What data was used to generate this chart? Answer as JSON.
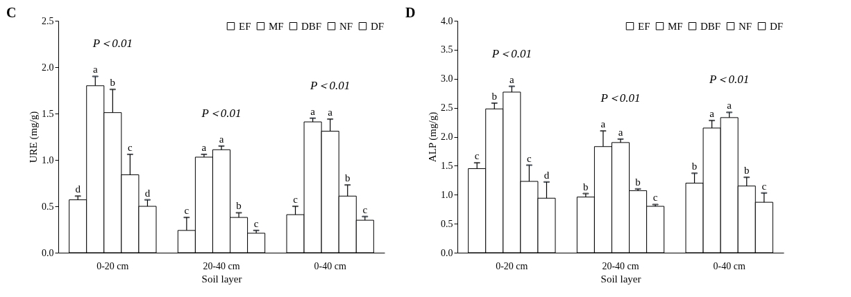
{
  "chart_data": [
    {
      "type": "bar",
      "title": "C",
      "xlabel": "Soil layer",
      "ylabel": "URE (mg/g)",
      "categories": [
        "0-20 cm",
        "20-40 cm",
        "0-40 cm"
      ],
      "series": [
        {
          "name": "EF",
          "color": "#ffffff",
          "values": [
            0.57,
            0.24,
            0.41
          ],
          "errors": [
            [
              0.57,
              0.61
            ],
            [
              0.24,
              0.38
            ],
            [
              0.41,
              0.5
            ]
          ],
          "value_labels": [
            "d",
            "c",
            "c"
          ]
        },
        {
          "name": "MF",
          "color": "#ffffff",
          "values": [
            1.8,
            1.03,
            1.41
          ],
          "errors": [
            [
              1.8,
              1.9
            ],
            [
              1.03,
              1.06
            ],
            [
              1.41,
              1.45
            ]
          ],
          "value_labels": [
            "a",
            "a",
            "a"
          ]
        },
        {
          "name": "DBF",
          "color": "#ffffff",
          "values": [
            1.51,
            1.11,
            1.31
          ],
          "errors": [
            [
              1.51,
              1.76
            ],
            [
              1.11,
              1.15
            ],
            [
              1.31,
              1.44
            ]
          ],
          "value_labels": [
            "b",
            "a",
            "a"
          ]
        },
        {
          "name": "NF",
          "color": "#ffffff",
          "values": [
            0.84,
            0.38,
            0.61
          ],
          "errors": [
            [
              0.84,
              1.06
            ],
            [
              0.38,
              0.43
            ],
            [
              0.61,
              0.73
            ]
          ],
          "value_labels": [
            "c",
            "b",
            "b"
          ]
        },
        {
          "name": "DF",
          "color": "#ffffff",
          "values": [
            0.5,
            0.21,
            0.35
          ],
          "errors": [
            [
              0.5,
              0.57
            ],
            [
              0.21,
              0.24
            ],
            [
              0.35,
              0.39
            ]
          ],
          "value_labels": [
            "d",
            "c",
            "c"
          ]
        }
      ],
      "ylim": [
        0,
        2.5
      ],
      "yticks": [
        {
          "value": 0,
          "label": "0.0"
        },
        0.5,
        {
          "value": 1,
          "label": "1.0"
        },
        1.5,
        {
          "value": 2,
          "label": "2.0"
        },
        2.5
      ],
      "legend": "top right",
      "annotations": [
        "P＜0.01",
        "P＜0.01",
        "P＜0.01"
      ]
    },
    {
      "type": "bar",
      "title": "D",
      "xlabel": "Soil layer",
      "ylabel": "ALP (mg/g)",
      "categories": [
        "0-20 cm",
        "20-40 cm",
        "0-40 cm"
      ],
      "series": [
        {
          "name": "EF",
          "color": "#ffffff",
          "values": [
            1.45,
            0.96,
            1.2
          ],
          "errors": [
            [
              1.45,
              1.55
            ],
            [
              0.96,
              1.02
            ],
            [
              1.2,
              1.37
            ]
          ],
          "value_labels": [
            "c",
            "b",
            "b"
          ]
        },
        {
          "name": "MF",
          "color": "#ffffff",
          "values": [
            2.48,
            1.83,
            2.15
          ],
          "errors": [
            [
              2.48,
              2.58
            ],
            [
              1.83,
              2.1
            ],
            [
              2.15,
              2.28
            ]
          ],
          "value_labels": [
            "b",
            "a",
            "a"
          ]
        },
        {
          "name": "DBF",
          "color": "#ffffff",
          "values": [
            2.77,
            1.9,
            2.33
          ],
          "errors": [
            [
              2.77,
              2.87
            ],
            [
              1.9,
              1.96
            ],
            [
              2.33,
              2.42
            ]
          ],
          "value_labels": [
            "a",
            "a",
            "a"
          ]
        },
        {
          "name": "NF",
          "color": "#ffffff",
          "values": [
            1.23,
            1.07,
            1.15
          ],
          "errors": [
            [
              1.23,
              1.51
            ],
            [
              1.07,
              1.1
            ],
            [
              1.15,
              1.3
            ]
          ],
          "value_labels": [
            "c",
            "b",
            "b"
          ]
        },
        {
          "name": "DF",
          "color": "#ffffff",
          "values": [
            0.94,
            0.8,
            0.87
          ],
          "errors": [
            [
              0.94,
              1.22
            ],
            [
              0.8,
              0.83
            ],
            [
              0.87,
              1.03
            ]
          ],
          "value_labels": [
            "d",
            "c",
            "c"
          ]
        }
      ],
      "ylim": [
        0,
        4
      ],
      "yticks": [
        {
          "value": 0,
          "label": "0.0"
        },
        0.5,
        {
          "value": 1,
          "label": "1.0"
        },
        1.5,
        {
          "value": 2,
          "label": "2.0"
        },
        2.5,
        {
          "value": 3,
          "label": "3.0"
        },
        3.5,
        {
          "value": 4,
          "label": "4.0"
        }
      ],
      "legend": "top right",
      "annotations": [
        "P＜0.01",
        "P＜0.01",
        "P＜0.01"
      ]
    }
  ]
}
